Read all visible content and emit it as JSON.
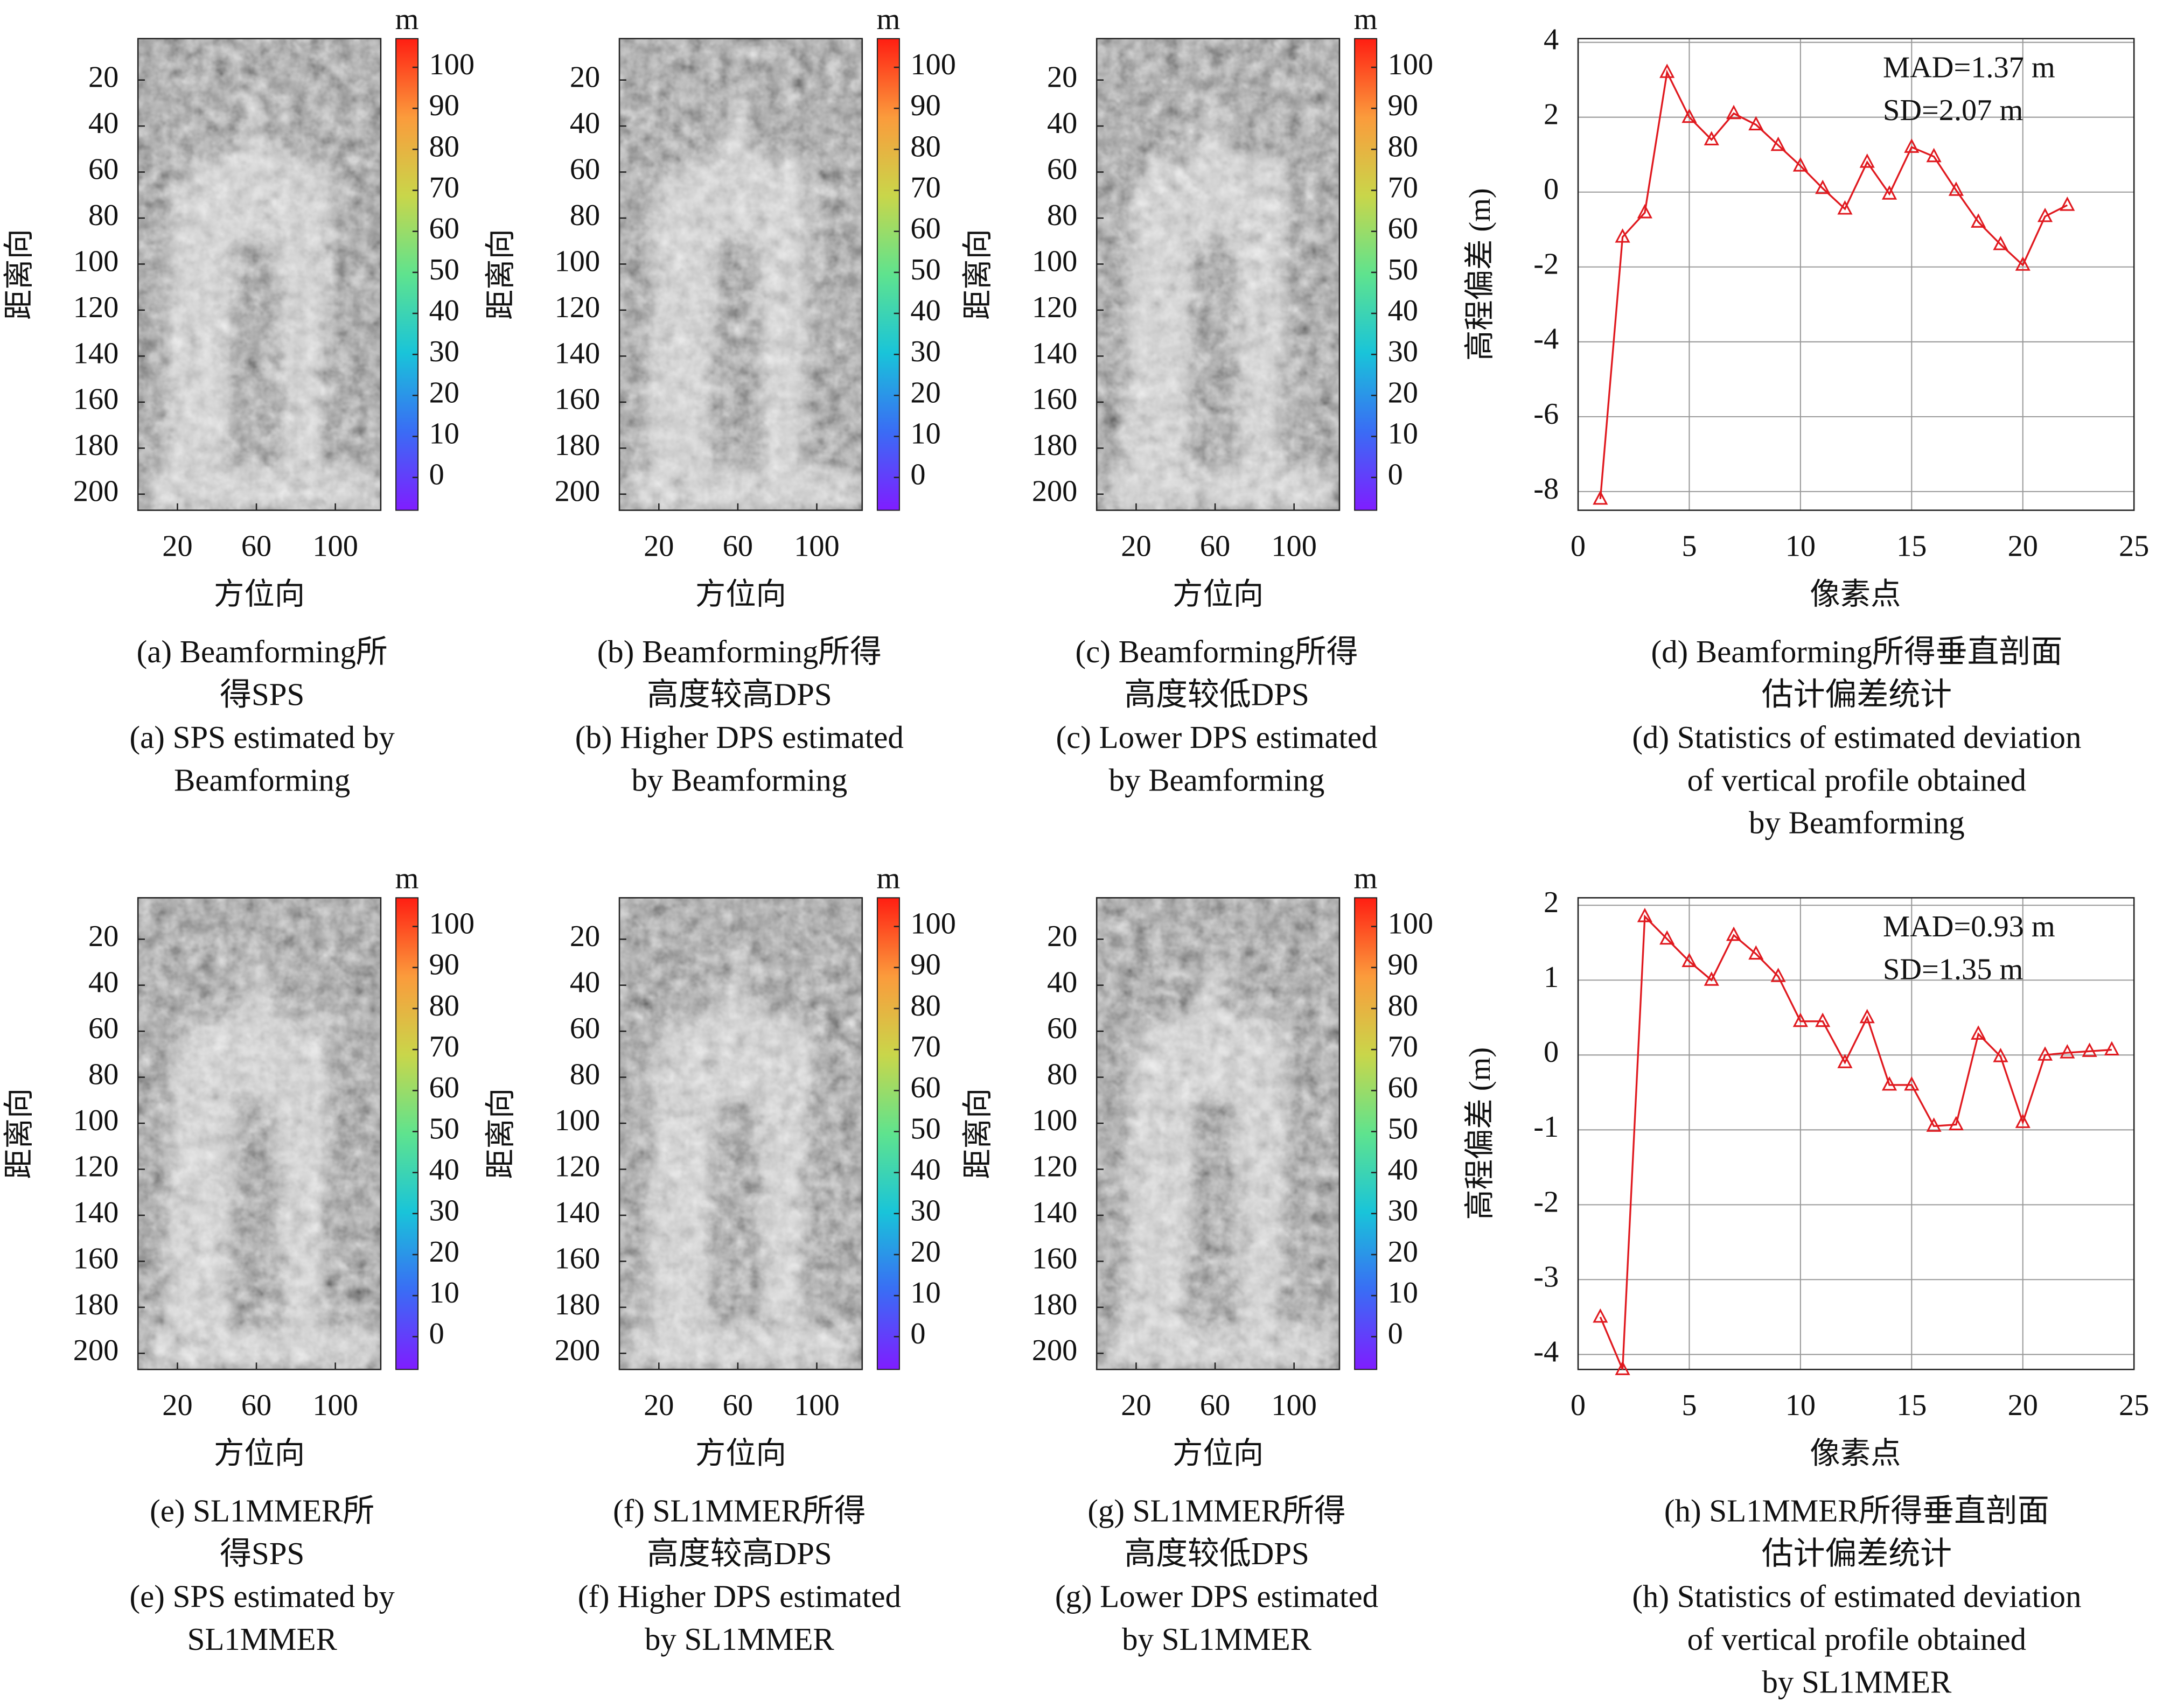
{
  "chart_data": [
    {
      "type": "image",
      "xlabel": "方位向",
      "ylabel": "距离向",
      "xlim": [
        0,
        123
      ],
      "ylim": [
        2,
        207
      ],
      "xticks": [
        20,
        60,
        100
      ],
      "yticks": [
        20,
        40,
        60,
        80,
        100,
        120,
        140,
        160,
        180,
        200
      ],
      "colorbar": {
        "label": "m",
        "lim": [
          -8,
          107
        ],
        "ticks": [
          0,
          10,
          20,
          30,
          40,
          50,
          60,
          70,
          80,
          90,
          100
        ],
        "colors": [
          "#7f1dff",
          "#3a6cf5",
          "#19c4d9",
          "#5fe38e",
          "#c9d64a",
          "#fb9b3c",
          "#ff1e12"
        ]
      },
      "caption": [
        "(a) Beamforming所",
        "得SPS",
        "(a) SPS estimated by",
        "Beamforming"
      ]
    },
    {
      "type": "image",
      "xlabel": "方位向",
      "ylabel": "距离向",
      "xlim": [
        0,
        123
      ],
      "ylim": [
        2,
        207
      ],
      "xticks": [
        20,
        60,
        100
      ],
      "yticks": [
        20,
        40,
        60,
        80,
        100,
        120,
        140,
        160,
        180,
        200
      ],
      "colorbar": {
        "label": "m",
        "lim": [
          -8,
          107
        ],
        "ticks": [
          0,
          10,
          20,
          30,
          40,
          50,
          60,
          70,
          80,
          90,
          100
        ],
        "colors": [
          "#7f1dff",
          "#3a6cf5",
          "#19c4d9",
          "#5fe38e",
          "#c9d64a",
          "#fb9b3c",
          "#ff1e12"
        ]
      },
      "caption": [
        "(b) Beamforming所得",
        "高度较高DPS",
        "(b) Higher DPS estimated",
        "by Beamforming"
      ]
    },
    {
      "type": "image",
      "xlabel": "方位向",
      "ylabel": "距离向",
      "xlim": [
        0,
        123
      ],
      "ylim": [
        2,
        207
      ],
      "xticks": [
        20,
        60,
        100
      ],
      "yticks": [
        20,
        40,
        60,
        80,
        100,
        120,
        140,
        160,
        180,
        200
      ],
      "colorbar": {
        "label": "m",
        "lim": [
          -8,
          107
        ],
        "ticks": [
          0,
          10,
          20,
          30,
          40,
          50,
          60,
          70,
          80,
          90,
          100
        ],
        "colors": [
          "#7f1dff",
          "#3a6cf5",
          "#19c4d9",
          "#5fe38e",
          "#c9d64a",
          "#fb9b3c",
          "#ff1e12"
        ]
      },
      "caption": [
        "(c) Beamforming所得",
        "高度较低DPS",
        "(c) Lower DPS estimated",
        "by Beamforming"
      ]
    },
    {
      "type": "line",
      "xlabel": "像素点",
      "ylabel": "高程偏差 (m)",
      "xlim": [
        0,
        25
      ],
      "ylim": [
        -8.5,
        4.1
      ],
      "xticks": [
        0,
        5,
        10,
        15,
        20,
        25
      ],
      "yticks": [
        -8,
        -6,
        -4,
        -2,
        0,
        2,
        4
      ],
      "grid": true,
      "color": "#e0191f",
      "x": [
        1,
        2,
        3,
        4,
        5,
        6,
        7,
        8,
        9,
        10,
        11,
        12,
        13,
        14,
        15,
        16,
        17,
        18,
        19,
        20,
        21,
        22
      ],
      "values": [
        -8.2,
        -1.2,
        -0.55,
        3.2,
        2.0,
        1.4,
        2.1,
        1.8,
        1.25,
        0.7,
        0.1,
        -0.45,
        0.8,
        -0.05,
        1.2,
        0.95,
        0.05,
        -0.8,
        -1.4,
        -1.95,
        -0.65,
        -0.35
      ],
      "annotations": [
        "MAD=1.37 m",
        "SD=2.07 m"
      ],
      "caption": [
        "(d) Beamforming所得垂直剖面",
        "估计偏差统计",
        "(d) Statistics of estimated deviation",
        "of vertical profile obtained",
        "by Beamforming"
      ]
    },
    {
      "type": "image",
      "xlabel": "方位向",
      "ylabel": "距离向",
      "xlim": [
        0,
        123
      ],
      "ylim": [
        2,
        207
      ],
      "xticks": [
        20,
        60,
        100
      ],
      "yticks": [
        20,
        40,
        60,
        80,
        100,
        120,
        140,
        160,
        180,
        200
      ],
      "colorbar": {
        "label": "m",
        "lim": [
          -8,
          107
        ],
        "ticks": [
          0,
          10,
          20,
          30,
          40,
          50,
          60,
          70,
          80,
          90,
          100
        ],
        "colors": [
          "#7f1dff",
          "#3a6cf5",
          "#19c4d9",
          "#5fe38e",
          "#c9d64a",
          "#fb9b3c",
          "#ff1e12"
        ]
      },
      "caption": [
        "(e) SL1MMER所",
        "得SPS",
        "(e) SPS estimated by",
        "SL1MMER"
      ]
    },
    {
      "type": "image",
      "xlabel": "方位向",
      "ylabel": "距离向",
      "xlim": [
        0,
        123
      ],
      "ylim": [
        2,
        207
      ],
      "xticks": [
        20,
        60,
        100
      ],
      "yticks": [
        20,
        40,
        60,
        80,
        100,
        120,
        140,
        160,
        180,
        200
      ],
      "colorbar": {
        "label": "m",
        "lim": [
          -8,
          107
        ],
        "ticks": [
          0,
          10,
          20,
          30,
          40,
          50,
          60,
          70,
          80,
          90,
          100
        ],
        "colors": [
          "#7f1dff",
          "#3a6cf5",
          "#19c4d9",
          "#5fe38e",
          "#c9d64a",
          "#fb9b3c",
          "#ff1e12"
        ]
      },
      "caption": [
        "(f) SL1MMER所得",
        "高度较高DPS",
        "(f) Higher DPS estimated",
        "by SL1MMER"
      ]
    },
    {
      "type": "image",
      "xlabel": "方位向",
      "ylabel": "距离向",
      "xlim": [
        0,
        123
      ],
      "ylim": [
        2,
        207
      ],
      "xticks": [
        20,
        60,
        100
      ],
      "yticks": [
        20,
        40,
        60,
        80,
        100,
        120,
        140,
        160,
        180,
        200
      ],
      "colorbar": {
        "label": "m",
        "lim": [
          -8,
          107
        ],
        "ticks": [
          0,
          10,
          20,
          30,
          40,
          50,
          60,
          70,
          80,
          90,
          100
        ],
        "colors": [
          "#7f1dff",
          "#3a6cf5",
          "#19c4d9",
          "#5fe38e",
          "#c9d64a",
          "#fb9b3c",
          "#ff1e12"
        ]
      },
      "caption": [
        "(g) SL1MMER所得",
        "高度较低DPS",
        "(g) Lower DPS estimated",
        "by SL1MMER"
      ]
    },
    {
      "type": "line",
      "xlabel": "像素点",
      "ylabel": "高程偏差 (m)",
      "xlim": [
        0,
        25
      ],
      "ylim": [
        -4.2,
        2.1
      ],
      "xticks": [
        0,
        5,
        10,
        15,
        20,
        25
      ],
      "yticks": [
        -4,
        -3,
        -2,
        -1,
        0,
        1,
        2
      ],
      "grid": true,
      "color": "#e0191f",
      "x": [
        1,
        2,
        3,
        4,
        5,
        6,
        7,
        8,
        9,
        10,
        11,
        12,
        13,
        14,
        15,
        16,
        17,
        18,
        19,
        20,
        21,
        22,
        23,
        24
      ],
      "values": [
        -3.5,
        -4.2,
        1.85,
        1.55,
        1.25,
        1.0,
        1.6,
        1.35,
        1.05,
        0.45,
        0.45,
        -0.1,
        0.5,
        -0.4,
        -0.4,
        -0.95,
        -0.93,
        0.28,
        -0.02,
        -0.9,
        0.0,
        0.03,
        0.05,
        0.07
      ],
      "annotations": [
        "MAD=0.93 m",
        "SD=1.35 m"
      ],
      "caption": [
        "(h) SL1MMER所得垂直剖面",
        "估计偏差统计",
        "(h) Statistics of estimated deviation",
        "of vertical profile obtained",
        "by SL1MMER"
      ]
    }
  ]
}
